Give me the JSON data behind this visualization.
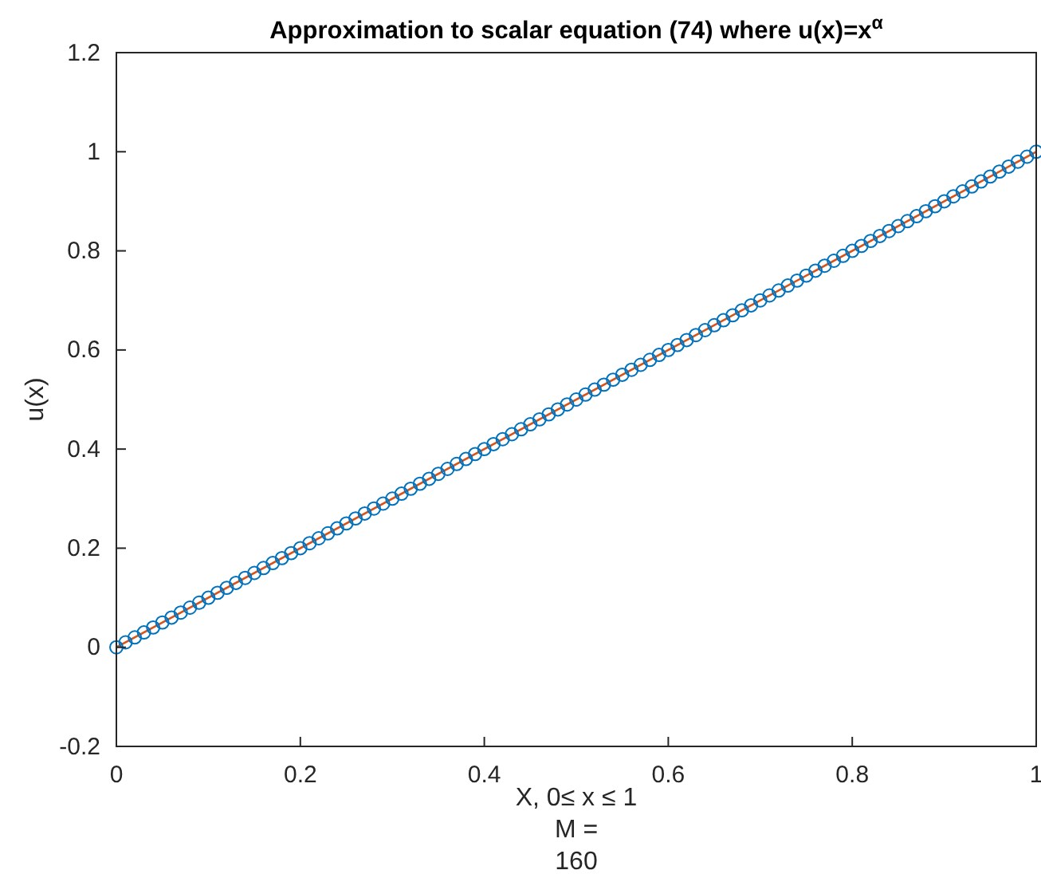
{
  "chart_data": {
    "type": "scatter",
    "title": "Approximation to scalar equation (74) where u(x)=x$^{α}$",
    "xlabel": "X, 0≤ x ≤ 1\nM =\n160",
    "ylabel": "u(x)",
    "xlim": [
      0,
      1
    ],
    "ylim": [
      -0.2,
      1.2
    ],
    "xticks": [
      0,
      0.2,
      0.4,
      0.6,
      0.8,
      1
    ],
    "yticks": [
      -0.2,
      0,
      0.2,
      0.4,
      0.6,
      0.8,
      1,
      1.2
    ],
    "grid": false,
    "series": [
      {
        "type": "line",
        "color": "#d95319",
        "marker": "none",
        "line_style": "solid",
        "x": [
          0,
          1
        ],
        "values": [
          0,
          1
        ]
      },
      {
        "color": "#0072bd",
        "marker": "circle",
        "x": [
          0,
          0.01,
          0.02,
          0.03,
          0.04,
          0.05,
          0.06,
          0.07,
          0.08,
          0.09,
          0.1,
          0.11,
          0.12,
          0.13,
          0.14,
          0.15,
          0.16,
          0.17,
          0.18,
          0.19,
          0.2,
          0.21,
          0.22,
          0.23,
          0.24,
          0.25,
          0.26,
          0.27,
          0.28,
          0.29,
          0.3,
          0.31,
          0.32,
          0.33,
          0.34,
          0.35,
          0.36,
          0.37,
          0.38,
          0.39,
          0.4,
          0.41,
          0.42,
          0.43,
          0.44,
          0.45,
          0.46,
          0.47,
          0.48,
          0.49,
          0.5,
          0.51,
          0.52,
          0.53,
          0.54,
          0.55,
          0.56,
          0.57,
          0.58,
          0.59,
          0.6,
          0.61,
          0.62,
          0.63,
          0.64,
          0.65,
          0.66,
          0.67,
          0.68,
          0.69,
          0.7,
          0.71,
          0.72,
          0.73,
          0.74,
          0.75,
          0.76,
          0.77,
          0.78,
          0.79,
          0.8,
          0.81,
          0.82,
          0.83,
          0.84,
          0.85,
          0.86,
          0.87,
          0.88,
          0.89,
          0.9,
          0.91,
          0.92,
          0.93,
          0.94,
          0.95,
          0.96,
          0.97,
          0.98,
          0.99,
          1
        ],
        "values": [
          0,
          0.01,
          0.02,
          0.03,
          0.04,
          0.05,
          0.06,
          0.07,
          0.08,
          0.09,
          0.1,
          0.11,
          0.12,
          0.13,
          0.14,
          0.15,
          0.16,
          0.17,
          0.18,
          0.19,
          0.2,
          0.21,
          0.22,
          0.23,
          0.24,
          0.25,
          0.26,
          0.27,
          0.28,
          0.29,
          0.3,
          0.31,
          0.32,
          0.33,
          0.34,
          0.35,
          0.36,
          0.37,
          0.38,
          0.39,
          0.4,
          0.41,
          0.42,
          0.43,
          0.44,
          0.45,
          0.46,
          0.47,
          0.48,
          0.49,
          0.5,
          0.51,
          0.52,
          0.53,
          0.54,
          0.55,
          0.56,
          0.57,
          0.58,
          0.59,
          0.6,
          0.61,
          0.62,
          0.63,
          0.64,
          0.65,
          0.66,
          0.67,
          0.68,
          0.69,
          0.7,
          0.71,
          0.72,
          0.73,
          0.74,
          0.75,
          0.76,
          0.77,
          0.78,
          0.79,
          0.8,
          0.81,
          0.82,
          0.83,
          0.84,
          0.85,
          0.86,
          0.87,
          0.88,
          0.89,
          0.9,
          0.91,
          0.92,
          0.93,
          0.94,
          0.95,
          0.96,
          0.97,
          0.98,
          0.99,
          1
        ]
      }
    ]
  }
}
